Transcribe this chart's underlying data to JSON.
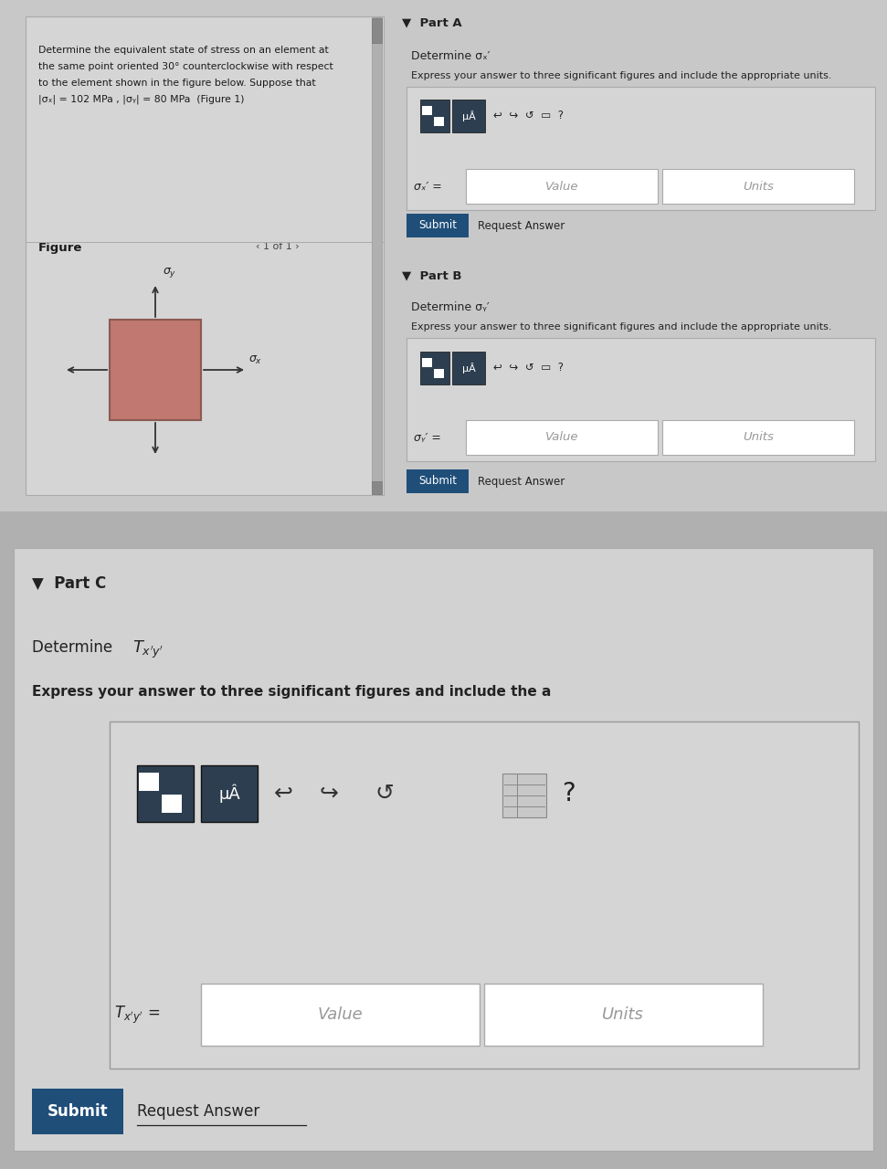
{
  "bg_color": "#b0b0b0",
  "top_panel_bg": "#c8c8c8",
  "left_box_bg": "#d5d5d5",
  "left_box_edge": "#aaaaaa",
  "right_panel_bg": "#c8c8c8",
  "partC_bg": "#c8c8c8",
  "partC_card_bg": "#d2d2d2",
  "input_section_bg": "#d5d5d5",
  "input_section_edge": "#aaaaaa",
  "white_input": "#ffffff",
  "white_input_edge": "#aaaaaa",
  "toolbar_btn_bg": "#2d3e50",
  "submit_bg": "#1f4e79",
  "submit_fg": "#ffffff",
  "black_text": "#1a1a1a",
  "gray_text": "#888888",
  "dark_text": "#222222",
  "blue_text": "#336699",
  "square_fill": "#c07870",
  "square_edge": "#8b5a52",
  "arrow_color": "#333333",
  "prob_text_line1": "Determine the equivalent state of stress on an element at",
  "prob_text_line2": "the same point oriented 30° counterclockwise with respect",
  "prob_text_line3": "to the element shown in the figure below. Suppose that",
  "prob_text_line4": "|σₓ| = 102 MPa , |σᵧ| = 80 MPa  (Figure 1)",
  "figure_label": "Figure",
  "nav_text": "‹ 1 of 1 ›",
  "partA_header": "▼  Part A",
  "partA_determine": "Determine σₓ′",
  "partA_express": "Express your answer to three significant figures and include the appropriate units.",
  "partA_label": "σₓ′ =",
  "partB_header": "▼  Part B",
  "partB_determine": "Determine σᵧ′",
  "partB_express": "Express your answer to three significant figures and include the appropriate units.",
  "partB_label": "σᵧ′ =",
  "partC_header": "▼  Part C",
  "partC_determine": "Determine Tₓ'y'",
  "partC_express": "Express your answer to three significant figures and include the a",
  "partC_label": "Tₓ'y' =",
  "value_ph": "Value",
  "units_ph": "Units",
  "mu_A_text": "μÂ",
  "submit_text": "Submit",
  "request_text": "Request Answer",
  "icons_text": "↩  ↪  ↺  ▭  ?"
}
